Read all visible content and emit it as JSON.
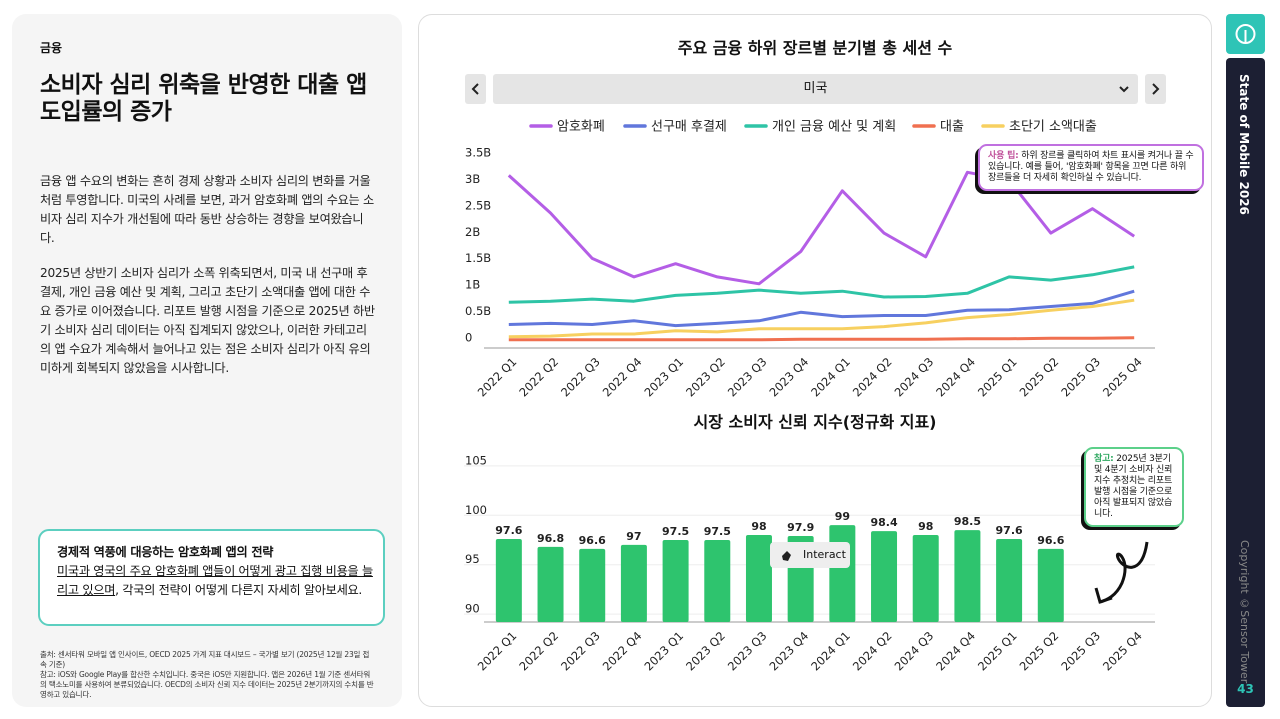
{
  "left": {
    "category": "금융",
    "title": "소비자 심리 위축을 반영한 대출 앱 도입률의 증가",
    "paragraphs": [
      "금융 앱 수요의 변화는 흔히 경제 상황과 소비자 심리의 변화를 거울처럼 투영합니다. 미국의 사례를 보면, 과거 암호화폐 앱의 수요는 소비자 심리 지수가 개선됨에 따라 동반 상승하는 경향을 보여왔습니다.",
      "2025년 상반기 소비자 심리가 소폭 위축되면서, 미국 내 선구매 후결제, 개인 금융 예산 및 계획, 그리고 초단기 소액대출 앱에 대한 수요 증가로 이어졌습니다. 리포트 발행 시점을 기준으로 2025년 하반기 소비자 심리 데이터는 아직 집계되지 않았으나, 이러한 카테고리의 앱 수요가 계속해서 늘어나고 있는 점은 소비자 심리가 아직 유의미하게 회복되지 않았음을 시사합니다."
    ],
    "callout": {
      "title": "경제적 역풍에 대응하는 암호화폐 앱의 전략",
      "link": "미국과 영국의 주요 암호화폐 앱들이 어떻게 광고 집행 비용을 늘리고 있으며",
      "rest": ", 각국의 전략이 어떻게 다른지 자세히 알아보세요."
    },
    "footnotes": [
      "출처: 센서타워 모바일 앱 인사이트, OECD 2025 가계 지표 대시보드 – 국가별 보기 (2025년 12월 23일 접속 기준)",
      "참고: iOS와 Google Play를 합산한 수치입니다. 중국은 iOS만 지원합니다. 앱은 2026년 1월 기준 센서타워의 택소노미를 사용하여 분류되었습니다. OECD의 소비자 신뢰 지수 데이터는 2025년 2분기까지의 수치를 반영하고 있습니다."
    ]
  },
  "controls": {
    "country": "미국",
    "interact": "Interact"
  },
  "tips": [
    {
      "label": "사용 팁:",
      "text": "하위 장르를 클릭하여 차트 표시를 켜거나 끌 수 있습니다. 예를 들어, '암호화폐' 항목을 끄면 다른 하위 장르들을 더 자세히 확인하실 수 있습니다."
    },
    {
      "label": "참고:",
      "text": "2025년 3분기 및 4분기 소비자 신뢰 지수 추정치는 리포트 발행 시점을 기준으로 아직 발표되지 않았습니다."
    }
  ],
  "sidebar": {
    "title": "State of Mobile 2026",
    "copyright": "Copyright ©Sensor Tower",
    "page": "43"
  },
  "chart_data": [
    {
      "type": "line",
      "title": "주요 금융 하위 장르별 분기별 총 세션 수",
      "categories": [
        "2022 Q1",
        "2022 Q2",
        "2022 Q3",
        "2022 Q4",
        "2023 Q1",
        "2023 Q2",
        "2023 Q3",
        "2023 Q4",
        "2024 Q1",
        "2024 Q2",
        "2024 Q3",
        "2024 Q4",
        "2025 Q1",
        "2025 Q2",
        "2025 Q3",
        "2025 Q4"
      ],
      "series": [
        {
          "name": "암호화폐",
          "color": "#b45ee6",
          "values": [
            3.17,
            2.46,
            1.6,
            1.25,
            1.5,
            1.25,
            1.12,
            1.73,
            2.88,
            2.08,
            1.63,
            3.23,
            3.08,
            2.08,
            2.54,
            2.02
          ]
        },
        {
          "name": "선구매 후결제",
          "color": "#6177dc",
          "values": [
            0.35,
            0.37,
            0.35,
            0.42,
            0.33,
            0.37,
            0.42,
            0.58,
            0.5,
            0.52,
            0.52,
            0.62,
            0.63,
            0.69,
            0.75,
            0.98
          ]
        },
        {
          "name": "개인 금융 예산 및 계획",
          "color": "#2ec4a6",
          "values": [
            0.77,
            0.79,
            0.83,
            0.79,
            0.9,
            0.94,
            1.0,
            0.94,
            0.98,
            0.87,
            0.88,
            0.94,
            1.25,
            1.19,
            1.29,
            1.44
          ]
        },
        {
          "name": "대출",
          "color": "#f07050",
          "values": [
            0.06,
            0.06,
            0.06,
            0.06,
            0.06,
            0.06,
            0.06,
            0.07,
            0.07,
            0.07,
            0.07,
            0.08,
            0.08,
            0.09,
            0.09,
            0.1
          ]
        },
        {
          "name": "초단기 소액대출",
          "color": "#f7d060",
          "values": [
            0.12,
            0.13,
            0.17,
            0.17,
            0.23,
            0.21,
            0.27,
            0.27,
            0.27,
            0.31,
            0.38,
            0.48,
            0.54,
            0.62,
            0.69,
            0.81
          ]
        }
      ],
      "ylim": [
        0,
        3.5
      ],
      "yticks": [
        0,
        {
          "value": 0.5,
          "label": "0.5B"
        },
        {
          "value": 1,
          "label": "1B"
        },
        {
          "value": 1.5,
          "label": "1.5B"
        },
        {
          "value": 2,
          "label": "2B"
        },
        {
          "value": 2.5,
          "label": "2.5B"
        },
        {
          "value": 3,
          "label": "3B"
        },
        {
          "value": 3.5,
          "label": "3.5B"
        }
      ],
      "grid": false
    },
    {
      "type": "bar",
      "title": "시장 소비자 신뢰 지수(정규화 지표)",
      "categories": [
        "2022 Q1",
        "2022 Q2",
        "2022 Q3",
        "2022 Q4",
        "2023 Q1",
        "2023 Q2",
        "2023 Q3",
        "2023 Q4",
        "2024 Q1",
        "2024 Q2",
        "2024 Q3",
        "2024 Q4",
        "2025 Q1",
        "2025 Q2",
        "2025 Q3",
        "2025 Q4"
      ],
      "values": [
        97.6,
        96.8,
        96.6,
        97,
        97.5,
        97.5,
        98,
        97.9,
        99,
        98.4,
        98,
        98.5,
        97.6,
        96.6,
        null,
        null
      ],
      "color": "#2ec46e",
      "ylim": [
        89.2,
        106
      ],
      "yticks": [
        90,
        95,
        100,
        105
      ],
      "grid": true
    }
  ]
}
